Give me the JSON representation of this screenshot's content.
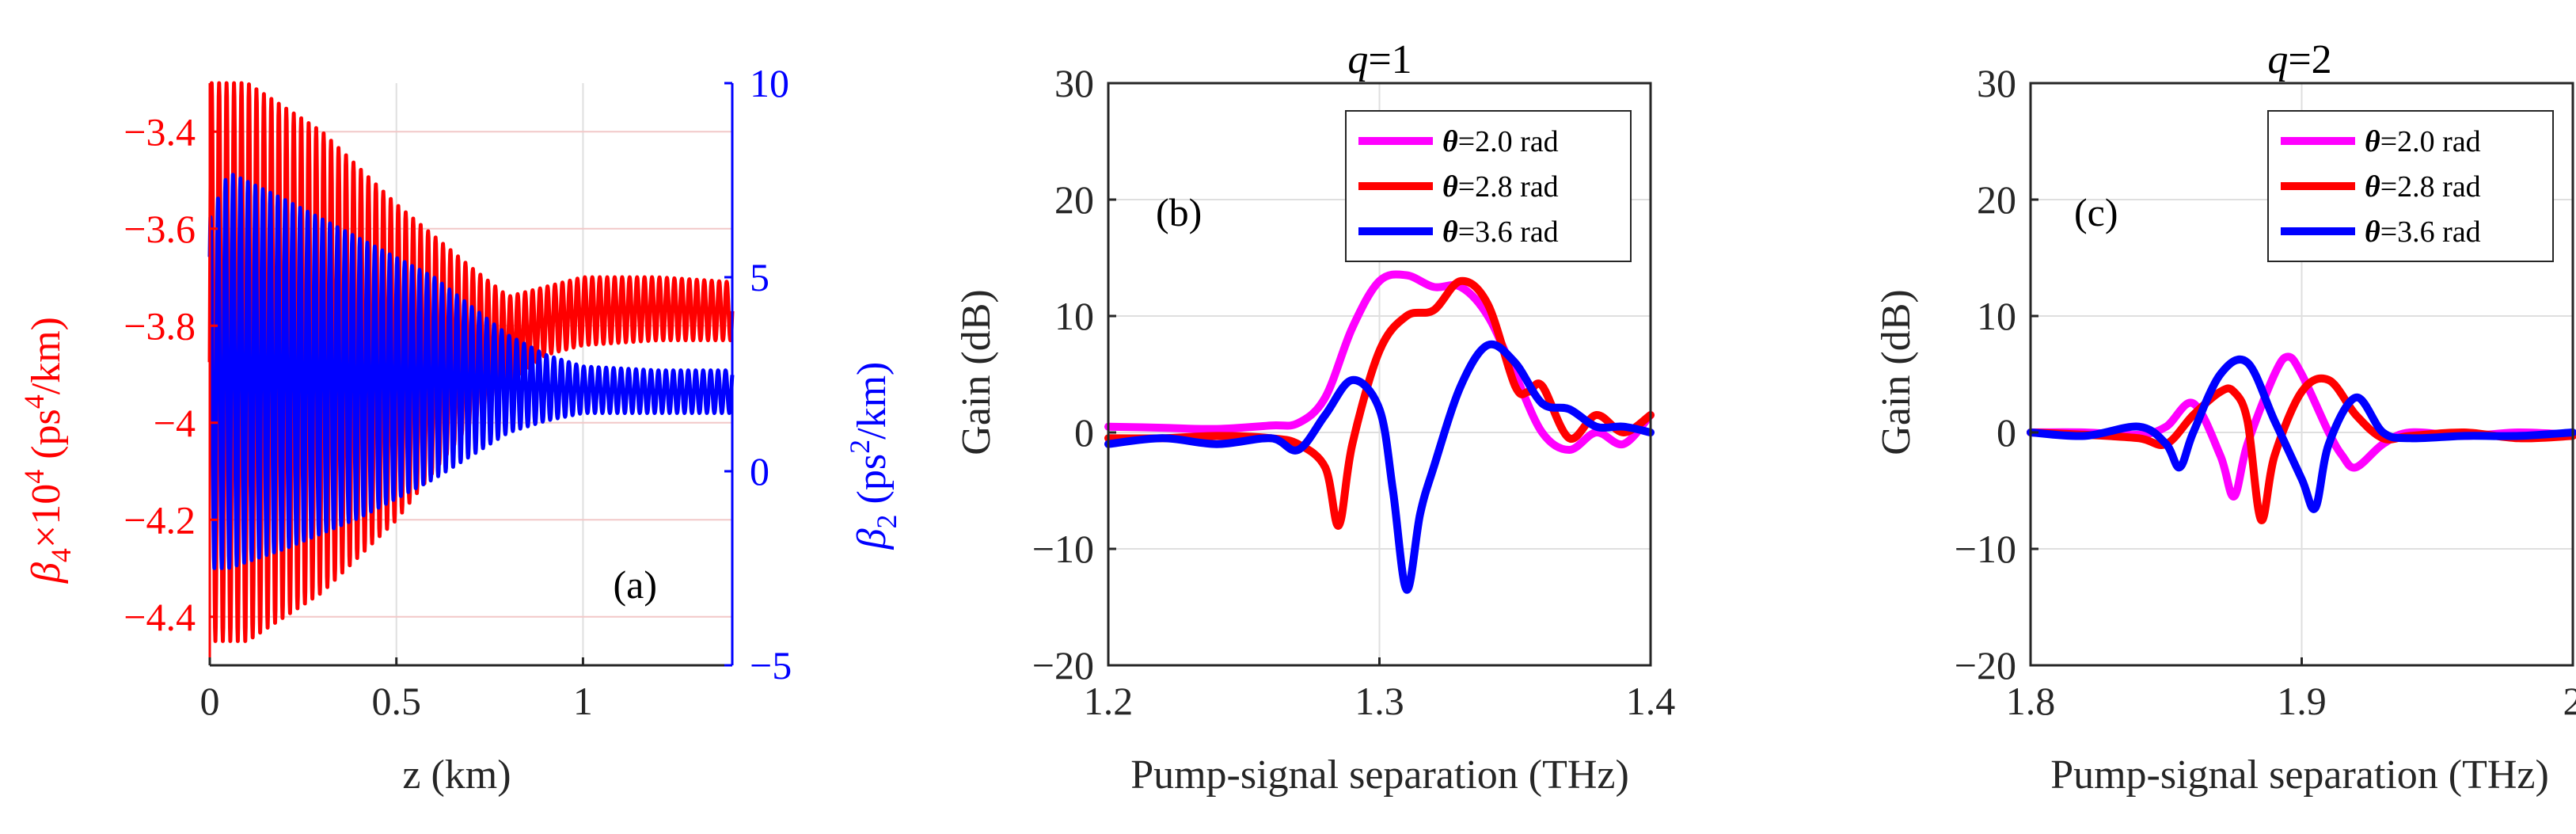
{
  "colors": {
    "red": "#ff0000",
    "blue": "#0000ff",
    "magenta": "#ff00ff",
    "axis": "#262626",
    "grid": "#dfdfdf"
  },
  "chart_data": [
    {
      "id": "a",
      "type": "line",
      "panel_label": "(a)",
      "xlabel": "z (km)",
      "ylabel_left": {
        "pre": "β",
        "sub": "4",
        "mid": "×10",
        "sup": "4",
        "post": "  (ps",
        "sup2": "4",
        "end": "/km)"
      },
      "ylabel_right": {
        "pre": "β",
        "sub": "2",
        "mid": "  (ps",
        "sup": "2",
        "end": "/km)"
      },
      "xlim": [
        0,
        1.4
      ],
      "ylim_left": [
        -4.5,
        -3.3
      ],
      "ylim_right": [
        -5,
        10
      ],
      "xticks": [
        0,
        0.5,
        1
      ],
      "xtick_labels": [
        "0",
        "0.5",
        "1"
      ],
      "yticks_left": [
        -3.4,
        -3.6,
        -3.8,
        -4,
        -4.2,
        -4.4
      ],
      "ytick_labels_left": [
        "-3.4",
        "-3.6",
        "-3.8",
        "-4",
        "-4.2",
        "-4.4"
      ],
      "yticks_right": [
        10,
        5,
        0,
        -5
      ],
      "ytick_labels_right": [
        "10",
        "5",
        "0",
        "-5"
      ],
      "series": [
        {
          "name": "β4",
          "axis": "left",
          "color": "#ff0000",
          "oscillating": true,
          "period_km": 0.02,
          "envelope_z": [
            0,
            0.1,
            0.3,
            0.5,
            0.7,
            0.8,
            0.9,
            1.0,
            1.2,
            1.4
          ],
          "envelope_upper": [
            -3.3,
            -3.3,
            -3.4,
            -3.55,
            -3.68,
            -3.74,
            -3.72,
            -3.7,
            -3.7,
            -3.71
          ],
          "envelope_lower": [
            -4.45,
            -4.45,
            -4.35,
            -4.2,
            -4.0,
            -3.92,
            -3.86,
            -3.84,
            -3.83,
            -3.83
          ]
        },
        {
          "name": "β2",
          "axis": "right",
          "color": "#0000ff",
          "oscillating": true,
          "period_km": 0.02,
          "envelope_z": [
            0,
            0.05,
            0.2,
            0.4,
            0.6,
            0.8,
            0.9,
            1.0,
            1.2,
            1.4
          ],
          "envelope_upper": [
            6.5,
            7.7,
            7.0,
            6.0,
            5.0,
            3.5,
            3.0,
            2.7,
            2.6,
            2.6
          ],
          "envelope_lower": [
            -2.5,
            -2.5,
            -2.0,
            -1.2,
            -0.2,
            1.0,
            1.3,
            1.5,
            1.5,
            1.5
          ]
        }
      ]
    },
    {
      "id": "b",
      "type": "line",
      "title_var": "q",
      "title_val": "=1",
      "panel_label": "(b)",
      "xlabel": "Pump-signal separation (THz)",
      "ylabel": "Gain  (dB)",
      "xlim": [
        1.2,
        1.4
      ],
      "ylim": [
        -20,
        30
      ],
      "xticks": [
        1.2,
        1.3,
        1.4
      ],
      "xtick_labels": [
        "1.2",
        "1.3",
        "1.4"
      ],
      "yticks": [
        30,
        20,
        10,
        0,
        -10,
        -20
      ],
      "ytick_labels": [
        "30",
        "20",
        "10",
        "0",
        "−10",
        "−20"
      ],
      "legend_position": "top-right",
      "series": [
        {
          "name": "θ=2.0 rad",
          "sym": "θ",
          "rest": "=2.0 rad",
          "color": "#ff00ff",
          "x": [
            1.2,
            1.22,
            1.24,
            1.26,
            1.27,
            1.28,
            1.29,
            1.3,
            1.31,
            1.32,
            1.33,
            1.34,
            1.35,
            1.36,
            1.37,
            1.38,
            1.39,
            1.4
          ],
          "y": [
            0.5,
            0.4,
            0.3,
            0.6,
            0.8,
            3,
            9,
            13,
            13.5,
            12.5,
            12.5,
            10,
            5,
            0,
            -1.5,
            0,
            -1,
            1.5
          ]
        },
        {
          "name": "θ=2.8 rad",
          "sym": "θ",
          "rest": "=2.8 rad",
          "color": "#ff0000",
          "x": [
            1.2,
            1.22,
            1.24,
            1.26,
            1.27,
            1.28,
            1.285,
            1.29,
            1.3,
            1.31,
            1.32,
            1.33,
            1.34,
            1.35,
            1.355,
            1.36,
            1.37,
            1.38,
            1.39,
            1.4
          ],
          "y": [
            -0.5,
            -0.5,
            -0.3,
            -0.5,
            -1,
            -3,
            -8,
            -1,
            7,
            10,
            10.5,
            13,
            11,
            4,
            3.5,
            4,
            -0.5,
            1.5,
            0,
            1.5
          ]
        },
        {
          "name": "θ=3.6 rad",
          "sym": "θ",
          "rest": "=3.6 rad",
          "color": "#0000ff",
          "x": [
            1.2,
            1.22,
            1.24,
            1.26,
            1.27,
            1.28,
            1.29,
            1.3,
            1.305,
            1.31,
            1.315,
            1.32,
            1.33,
            1.34,
            1.35,
            1.36,
            1.37,
            1.38,
            1.39,
            1.4
          ],
          "y": [
            -1,
            -0.5,
            -1,
            -0.5,
            -1.5,
            1.5,
            4.5,
            2,
            -5,
            -13.5,
            -7,
            -3,
            4,
            7.5,
            6,
            2.5,
            2,
            0.5,
            0.5,
            0
          ]
        }
      ]
    },
    {
      "id": "c",
      "type": "line",
      "title_var": "q",
      "title_val": "=2",
      "panel_label": "(c)",
      "xlabel": "Pump-signal separation (THz)",
      "ylabel": "Gain  (dB)",
      "xlim": [
        1.8,
        2.0
      ],
      "ylim": [
        -20,
        30
      ],
      "xticks": [
        1.8,
        1.9,
        2.0
      ],
      "xtick_labels": [
        "1.8",
        "1.9",
        "2"
      ],
      "yticks": [
        30,
        20,
        10,
        0,
        -10,
        -20
      ],
      "ytick_labels": [
        "30",
        "20",
        "10",
        "0",
        "−10",
        "−20"
      ],
      "legend_position": "top-right",
      "series": [
        {
          "name": "θ=2.0 rad",
          "sym": "θ",
          "rest": "=2.0 rad",
          "color": "#ff00ff",
          "x": [
            1.8,
            1.82,
            1.84,
            1.85,
            1.86,
            1.87,
            1.875,
            1.88,
            1.89,
            1.895,
            1.9,
            1.91,
            1.915,
            1.92,
            1.93,
            1.94,
            1.96,
            1.98,
            2.0
          ],
          "y": [
            0,
            0,
            -0.2,
            0.5,
            2.5,
            -2,
            -5.5,
            -1,
            5,
            6.5,
            5,
            0,
            -2,
            -3,
            -1,
            0,
            -0.3,
            0,
            -0.2
          ]
        },
        {
          "name": "θ=2.8 rad",
          "sym": "θ",
          "rest": "=2.8 rad",
          "color": "#ff0000",
          "x": [
            1.8,
            1.82,
            1.84,
            1.85,
            1.86,
            1.87,
            1.875,
            1.88,
            1.885,
            1.89,
            1.9,
            1.91,
            1.92,
            1.93,
            1.94,
            1.96,
            1.98,
            2.0
          ],
          "y": [
            0,
            -0.2,
            -0.5,
            -1,
            1.5,
            3.5,
            3.5,
            1,
            -7.5,
            -2,
            3.5,
            4.5,
            1.5,
            -0.5,
            -0.3,
            0,
            -0.5,
            -0.3
          ]
        },
        {
          "name": "θ=3.6 rad",
          "sym": "θ",
          "rest": "=3.6 rad",
          "color": "#0000ff",
          "x": [
            1.8,
            1.82,
            1.84,
            1.85,
            1.855,
            1.86,
            1.87,
            1.88,
            1.89,
            1.9,
            1.905,
            1.91,
            1.92,
            1.93,
            1.94,
            1.96,
            1.98,
            2.0
          ],
          "y": [
            0,
            -0.3,
            0.5,
            -1,
            -3,
            0,
            5,
            6,
            1,
            -4,
            -6.5,
            -1,
            3,
            0,
            -0.5,
            -0.3,
            -0.3,
            0
          ]
        }
      ]
    }
  ]
}
